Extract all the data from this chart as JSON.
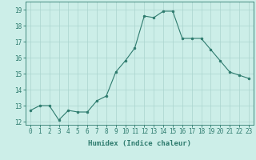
{
  "x": [
    0,
    1,
    2,
    3,
    4,
    5,
    6,
    7,
    8,
    9,
    10,
    11,
    12,
    13,
    14,
    15,
    16,
    17,
    18,
    19,
    20,
    21,
    22,
    23
  ],
  "y": [
    12.7,
    13.0,
    13.0,
    12.1,
    12.7,
    12.6,
    12.6,
    13.3,
    13.6,
    15.1,
    15.8,
    16.6,
    18.6,
    18.5,
    18.9,
    18.9,
    17.2,
    17.2,
    17.2,
    16.5,
    15.8,
    15.1,
    14.9,
    14.7
  ],
  "line_color": "#2e7b6e",
  "marker": "o",
  "marker_size": 2.0,
  "bg_color": "#cceee8",
  "grid_color": "#aad4ce",
  "xlabel": "Humidex (Indice chaleur)",
  "ylim": [
    11.8,
    19.5
  ],
  "xlim": [
    -0.5,
    23.5
  ],
  "yticks": [
    12,
    13,
    14,
    15,
    16,
    17,
    18,
    19
  ],
  "xticks": [
    0,
    1,
    2,
    3,
    4,
    5,
    6,
    7,
    8,
    9,
    10,
    11,
    12,
    13,
    14,
    15,
    16,
    17,
    18,
    19,
    20,
    21,
    22,
    23
  ],
  "tick_color": "#2e7b6e",
  "label_color": "#2e7b6e",
  "tick_fontsize": 5.5,
  "xlabel_fontsize": 6.5
}
